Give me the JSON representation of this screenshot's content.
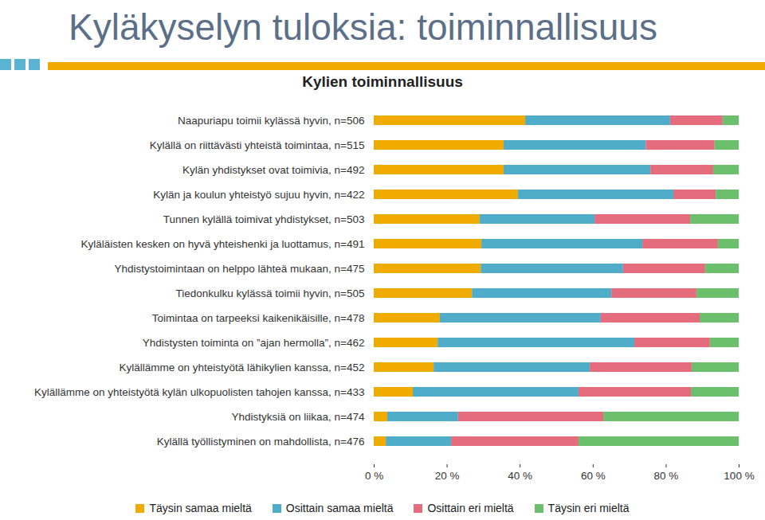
{
  "chart_data": {
    "type": "bar",
    "title": "Kyläkyselyn tuloksia: toiminnallisuus",
    "subtitle": "Kylien toiminnallisuus",
    "orientation": "horizontal",
    "stacked": true,
    "legend": "bottom",
    "grid": false,
    "categories": [
      "Naapuriapu toimii kylässä hyvin, n=506",
      "Kylällä on riittävästi yhteistä toimintaa, n=515",
      "Kylän yhdistykset ovat toimivia, n=492",
      "Kylän ja koulun yhteistyö sujuu hyvin, n=422",
      "Tunnen kylällä toimivat yhdistykset, n=503",
      "Kyläläisten kesken on hyvä yhteishenki ja luottamus, n=491",
      "Yhdistystoimintaan on helppo lähteä mukaan, n=475",
      "Tiedonkulku kylässä toimii hyvin, n=505",
      "Toimintaa on tarpeeksi kaikenikäisille, n=478",
      "Yhdistysten toiminta on ”ajan hermolla”, n=462",
      "Kylällämme on yhteistyötä lähikylien kanssa, n=452",
      "Kylällämme on yhteistyötä kylän ulkopuolisten tahojen kanssa, n=433",
      "Yhdistyksiä on liikaa, n=474",
      "Kylällä työllistyminen on mahdollista, n=476"
    ],
    "series": [
      {
        "name": "Täysin samaa mieltä",
        "color": "#f0ab00",
        "values": [
          41.5,
          35.6,
          35.6,
          39.5,
          29.0,
          29.5,
          29.3,
          26.9,
          18.1,
          17.5,
          16.4,
          10.7,
          3.7,
          3.3
        ]
      },
      {
        "name": "Osittain samaa mieltä",
        "color": "#4fadc9",
        "values": [
          39.7,
          38.9,
          40.2,
          42.6,
          31.5,
          44.1,
          39.0,
          38.2,
          44.1,
          53.9,
          42.8,
          45.4,
          19.4,
          17.9
        ]
      },
      {
        "name": "Osittain eri mieltä",
        "color": "#e46c7d",
        "values": [
          14.4,
          18.9,
          17.2,
          11.6,
          26.2,
          20.7,
          22.5,
          23.3,
          27.1,
          20.7,
          27.9,
          30.8,
          39.8,
          34.9
        ]
      },
      {
        "name": "Täysin eri mieltä",
        "color": "#6cbf6c",
        "values": [
          4.4,
          6.6,
          7.0,
          6.3,
          13.3,
          5.7,
          9.2,
          11.6,
          10.7,
          7.9,
          12.9,
          13.1,
          37.1,
          43.9
        ]
      }
    ],
    "xlim": [
      0,
      100
    ],
    "xticks": [
      {
        "value": 0,
        "label": "0 %"
      },
      {
        "value": 20,
        "label": "20 %"
      },
      {
        "value": 40,
        "label": "40 %"
      },
      {
        "value": 60,
        "label": "60 %"
      },
      {
        "value": 80,
        "label": "80 %"
      },
      {
        "value": 100,
        "label": "100 %"
      }
    ]
  }
}
